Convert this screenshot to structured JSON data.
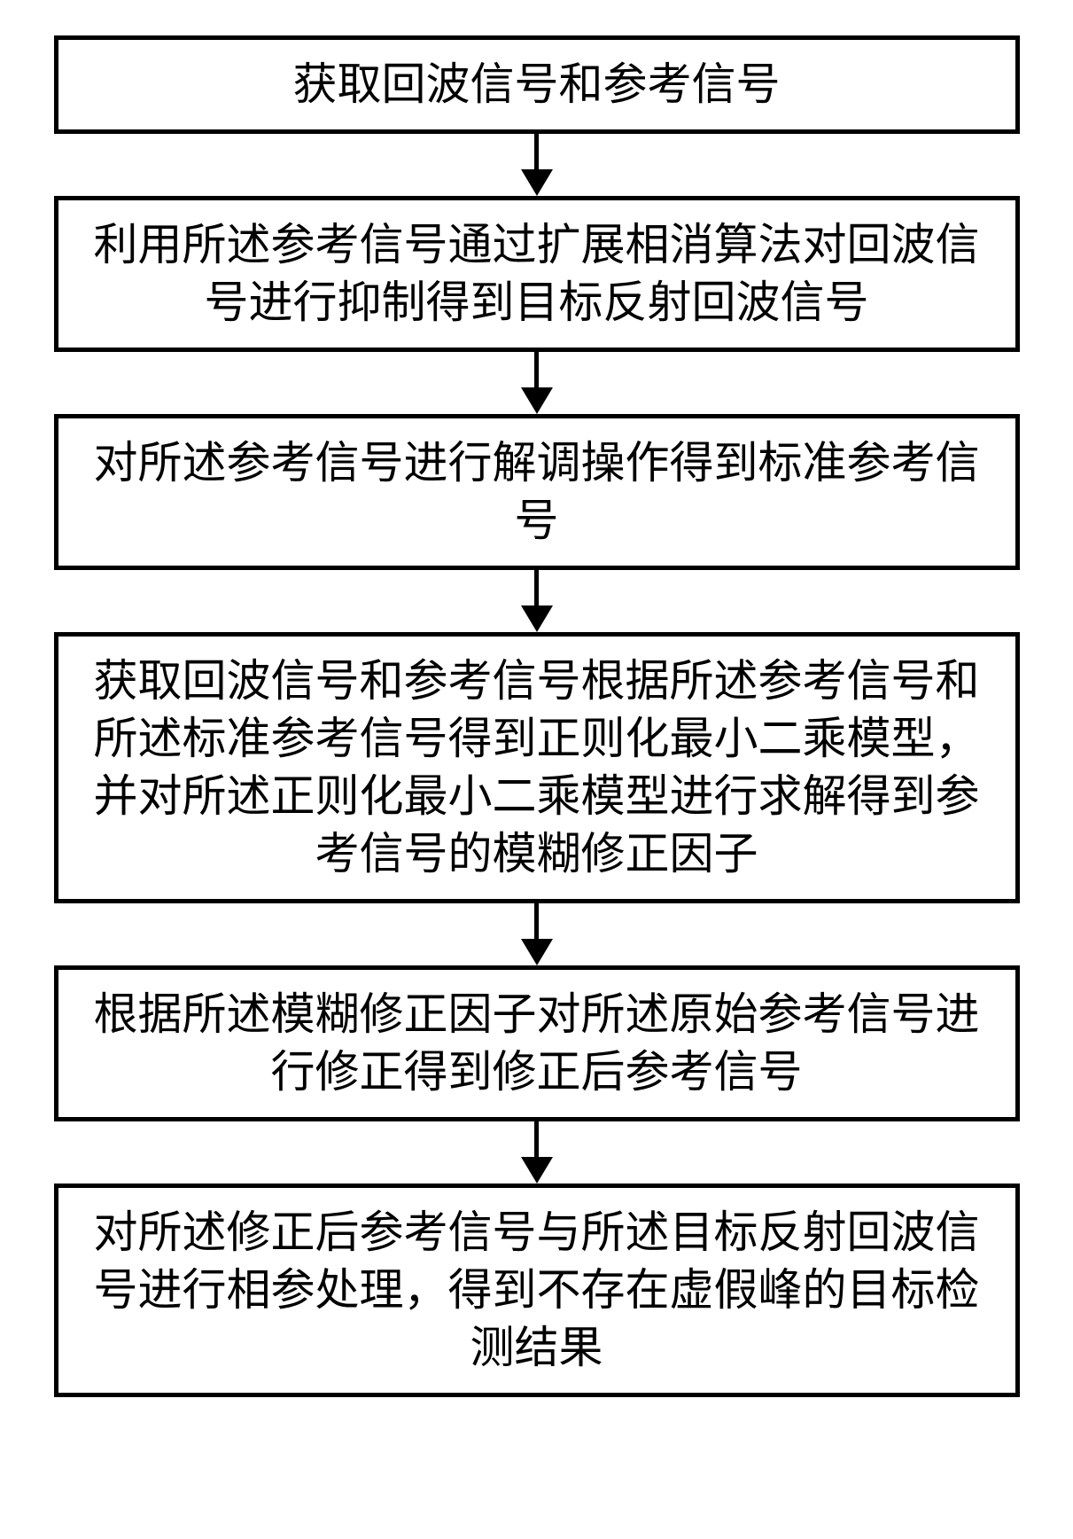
{
  "flowchart": {
    "type": "flowchart",
    "direction": "vertical",
    "background_color": "#ffffff",
    "box_style": {
      "border_color": "#000000",
      "border_width": 5,
      "fill_color": "#ffffff",
      "text_color": "#000000",
      "font_size": 50,
      "font_family": "SimSun"
    },
    "arrow_style": {
      "line_width": 5,
      "line_color": "#000000",
      "head_width": 36,
      "head_height": 30
    },
    "nodes": [
      {
        "id": "step1",
        "text": "获取回波信号和参考信号",
        "lines": 1
      },
      {
        "id": "step2",
        "text": "利用所述参考信号通过扩展相消算法对回波信号进行抑制得到目标反射回波信号",
        "lines": 2
      },
      {
        "id": "step3",
        "text": "对所述参考信号进行解调操作得到标准参考信号",
        "lines": 2
      },
      {
        "id": "step4",
        "text": "获取回波信号和参考信号根据所述参考信号和所述标准参考信号得到正则化最小二乘模型，并对所述正则化最小二乘模型进行求解得到参考信号的模糊修正因子",
        "lines": 4
      },
      {
        "id": "step5",
        "text": "根据所述模糊修正因子对所述原始参考信号进行修正得到修正后参考信号",
        "lines": 2
      },
      {
        "id": "step6",
        "text": "对所述修正后参考信号与所述目标反射回波信号进行相参处理，得到不存在虚假峰的目标检测结果",
        "lines": 3
      }
    ],
    "edges": [
      {
        "from": "step1",
        "to": "step2"
      },
      {
        "from": "step2",
        "to": "step3"
      },
      {
        "from": "step3",
        "to": "step4"
      },
      {
        "from": "step4",
        "to": "step5"
      },
      {
        "from": "step5",
        "to": "step6"
      }
    ]
  }
}
